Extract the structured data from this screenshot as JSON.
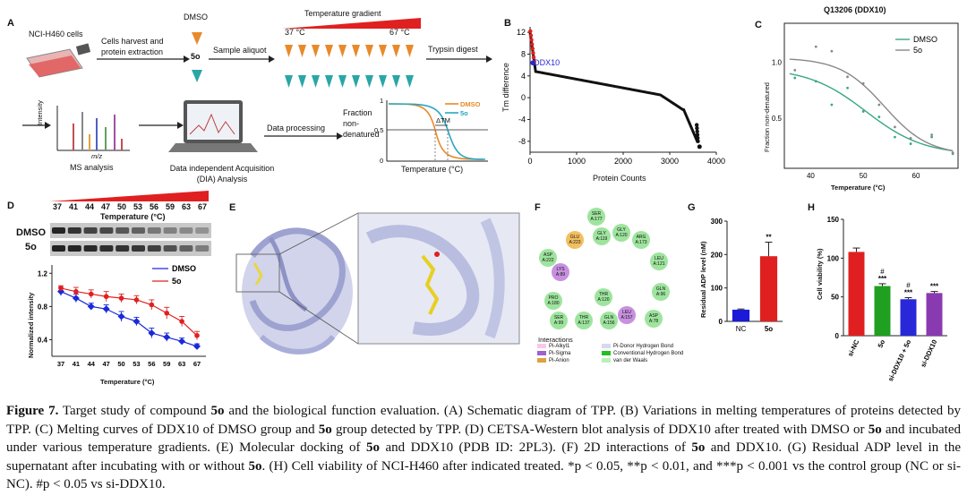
{
  "panels": {
    "A": {
      "label": "A",
      "cells": "NCI-H460 cells",
      "harvest": "Cells harvest and protein extraction",
      "dmso": "DMSO",
      "so": "5o",
      "aliquot": "Sample aliquot",
      "gradient": "Temperature gradient",
      "t_low": "37 °C",
      "t_high": "67 °C",
      "trypsin": "Trypsin digest",
      "ms": "MS analysis",
      "dia": "Data independent Acquisition (DIA) Analysis",
      "processing": "Data processing",
      "intensity": "Intensity",
      "mz": "m/z",
      "fraction": "Fraction non-denatured",
      "temperature": "Temperature (°C)",
      "dtm": "ΔTM",
      "legend_dmso": "DMSO",
      "legend_5o": "5o",
      "y_ticks": [
        "1",
        "0.5",
        "0"
      ]
    },
    "B": {
      "label": "B",
      "ylabel": "Tm difference",
      "xlabel": "Protein Counts",
      "highlight": "DDX10"
    },
    "C": {
      "label": "C",
      "title": "Q13206 (DDX10)",
      "ylabel": "Fraction non-denatured",
      "xlabel": "Temperature (°C)"
    },
    "D": {
      "label": "D",
      "temps": [
        "37",
        "41",
        "44",
        "47",
        "50",
        "53",
        "56",
        "59",
        "63",
        "67"
      ],
      "temp_label": "Temperature (°C)",
      "row1": "DMSO",
      "row2": "5o",
      "ylabel": "Normalized intensity",
      "xlabel": "Temperature (°C)"
    },
    "E": {
      "label": "E"
    },
    "F": {
      "label": "F",
      "residues": [
        "SER A:177",
        "GLU A:223",
        "GLY A:119",
        "GLY A:120",
        "ARG A:173",
        "LEU A:121",
        "ASP A:222",
        "THR A:120",
        "GLN A:96",
        "PRO A:180",
        "SER A:99",
        "THR A:137",
        "GLN A:156",
        "LEU A:157",
        "ASP A:78",
        "LYS A:89"
      ],
      "legend_title": "Interactions",
      "legend": [
        "Pi-Alkyl1",
        "Pi-Sigma",
        "Pi-Anion",
        "Pi-Donor Hydrogen Bond",
        "Conventional Hydrogen Bond",
        "van der Waals"
      ]
    },
    "G": {
      "label": "G",
      "ylabel": "Residual ADP level (nM)",
      "sig": "**"
    },
    "H": {
      "label": "H",
      "ylabel": "Cell viability (%)",
      "sig": [
        "***",
        "***",
        "***"
      ],
      "hash": [
        "#",
        "#"
      ]
    }
  },
  "chart_data": [
    {
      "type": "scatter",
      "panel": "B",
      "xlabel": "Protein Counts",
      "ylabel": "Tm difference",
      "x_ticks": [
        0,
        1000,
        2000,
        3000,
        4000
      ],
      "y_ticks": [
        12,
        8,
        4,
        0,
        -4,
        -8
      ],
      "xlim": [
        0,
        4000
      ],
      "ylim": [
        -10,
        13
      ],
      "annotation": "DDX10",
      "colors": {
        "top": "#e02020",
        "main": "#111111",
        "highlight": "#2a2ad0"
      }
    },
    {
      "type": "line",
      "panel": "C",
      "title": "Q13206 (DDX10)",
      "xlabel": "Temperature (°C)",
      "ylabel": "Fraction non-denatured",
      "x_ticks": [
        40,
        50,
        60
      ],
      "y_ticks": [
        0.5,
        1.0
      ],
      "xlim": [
        35,
        68
      ],
      "ylim": [
        0.05,
        1.35
      ],
      "series": [
        {
          "name": "DMSO",
          "color": "#3aa882",
          "points": [
            [
              37,
              0.86
            ],
            [
              41,
              0.83
            ],
            [
              44,
              0.62
            ],
            [
              47,
              0.77
            ],
            [
              50,
              0.56
            ],
            [
              53,
              0.51
            ],
            [
              56,
              0.33
            ],
            [
              59,
              0.27
            ],
            [
              63,
              0.33
            ],
            [
              67,
              0.18
            ]
          ]
        },
        {
          "name": "5o",
          "color": "#888888",
          "points": [
            [
              37,
              0.93
            ],
            [
              41,
              1.14
            ],
            [
              44,
              1.1
            ],
            [
              47,
              0.87
            ],
            [
              50,
              0.81
            ],
            [
              53,
              0.62
            ],
            [
              56,
              0.42
            ],
            [
              59,
              0.32
            ],
            [
              63,
              0.35
            ],
            [
              67,
              0.19
            ]
          ]
        }
      ]
    },
    {
      "type": "line",
      "panel": "D",
      "xlabel": "Temperature (°C)",
      "ylabel": "Normalized intensity",
      "categories": [
        "37",
        "41",
        "44",
        "47",
        "50",
        "53",
        "56",
        "59",
        "63",
        "67"
      ],
      "y_ticks": [
        0.4,
        0.8,
        1.2
      ],
      "ylim": [
        0.2,
        1.3
      ],
      "series": [
        {
          "name": "DMSO",
          "color": "#1a2ad8",
          "values": [
            0.98,
            0.9,
            0.8,
            0.77,
            0.68,
            0.62,
            0.48,
            0.43,
            0.38,
            0.32
          ],
          "err": [
            0.05,
            0.05,
            0.04,
            0.05,
            0.06,
            0.05,
            0.06,
            0.05,
            0.04,
            0.03
          ]
        },
        {
          "name": "5o",
          "color": "#e02020",
          "values": [
            1.02,
            0.98,
            0.95,
            0.92,
            0.9,
            0.88,
            0.82,
            0.72,
            0.62,
            0.45
          ],
          "err": [
            0.03,
            0.05,
            0.05,
            0.06,
            0.05,
            0.05,
            0.06,
            0.07,
            0.06,
            0.05
          ]
        }
      ]
    },
    {
      "type": "bar",
      "panel": "G",
      "ylabel": "Residual ADP level (nM)",
      "categories": [
        "NC",
        "5o"
      ],
      "values": [
        35,
        195
      ],
      "err": [
        2,
        42
      ],
      "colors": [
        "#1a1ad8",
        "#e02020"
      ],
      "y_ticks": [
        0,
        100,
        200,
        300
      ],
      "ylim": [
        0,
        300
      ]
    },
    {
      "type": "bar",
      "panel": "H",
      "ylabel": "Cell viability (%)",
      "categories": [
        "si-NC",
        "5o",
        "si-DDX10 + 5o",
        "si-DDX10"
      ],
      "values": [
        108,
        64,
        47,
        55
      ],
      "err": [
        5,
        3,
        2,
        2
      ],
      "colors": [
        "#e02020",
        "#20a020",
        "#2828d8",
        "#8a3ab0"
      ],
      "y_ticks": [
        0,
        50,
        100,
        150
      ],
      "ylim": [
        0,
        150
      ]
    }
  ],
  "caption": {
    "fig": "Figure 7.",
    "s1": " Target study of compound ",
    "c1": "5o",
    "s2": " and the biological function evaluation. (A) Schematic diagram of TPP. (B) Variations in melting temperatures of proteins detected by TPP. (C) Melting curves of DDX10 of DMSO group and ",
    "c2": "5o",
    "s3": " group detected by TPP. (D) CETSA-Western blot analysis of DDX10 after treated with DMSO or ",
    "c3": "5o",
    "s4": " and incubated under various temperature gradients. (E) Molecular docking of ",
    "c4": "5o",
    "s5": " and DDX10 (PDB ID: 2PL3). (F) 2D interactions of ",
    "c5": "5o",
    "s6": " and DDX10. (G) Residual ADP level in the supernatant after incubating with or without ",
    "c6": "5o",
    "s7": ". (H) Cell viability of NCI-H460 after indicated treated. *p < 0.05, **p < 0.01, and ***p < 0.001 vs the control group (NC or si-NC). #p < 0.05 vs si-DDX10."
  }
}
